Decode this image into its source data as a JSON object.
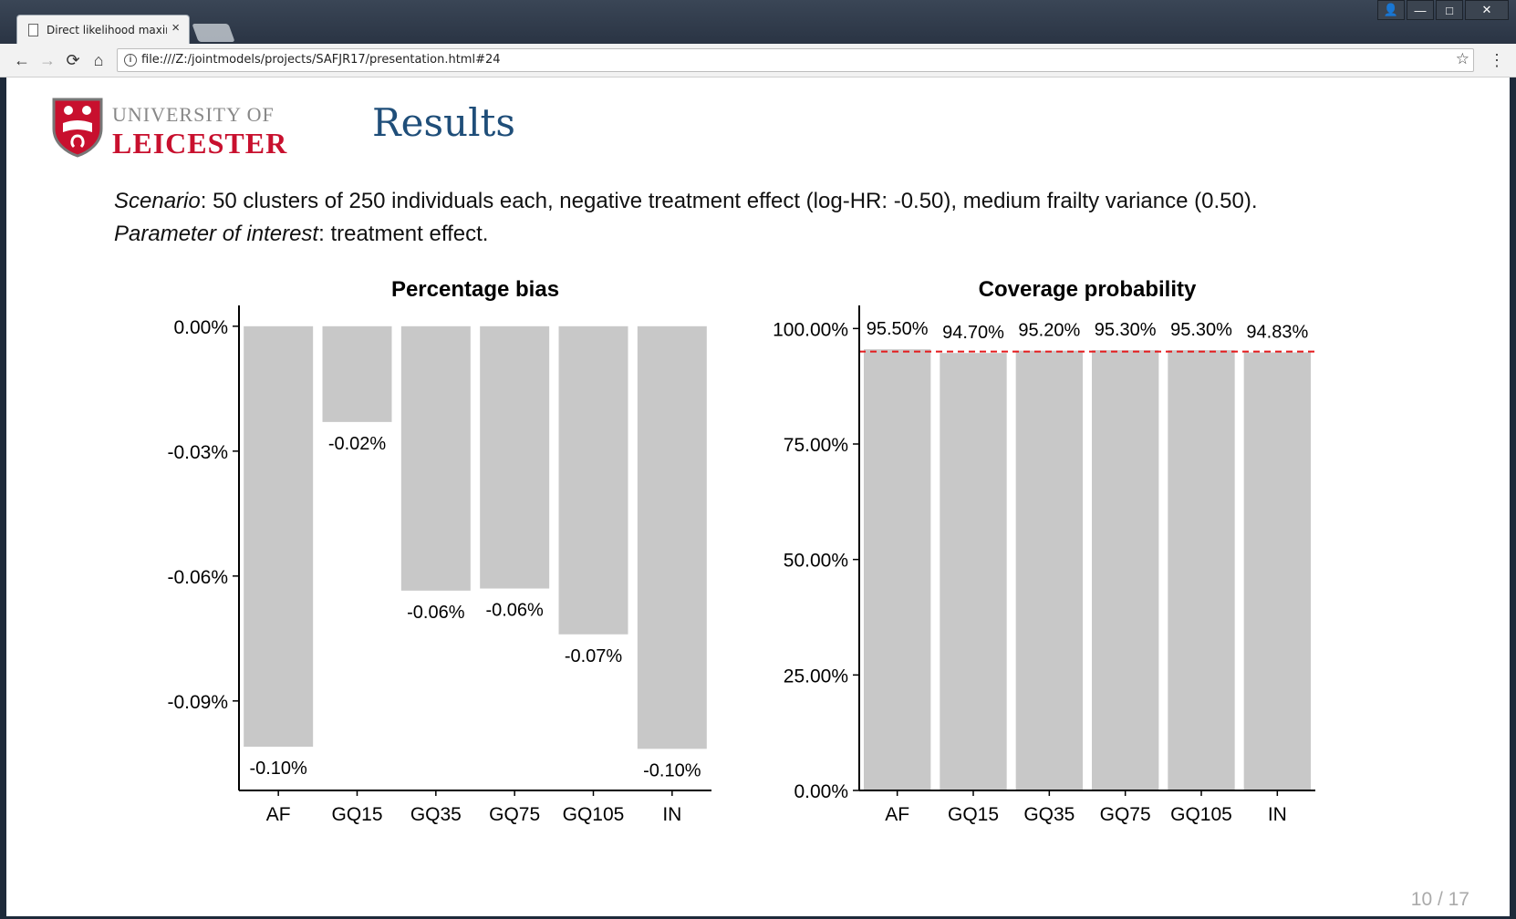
{
  "browser": {
    "tab_title": "Direct likelihood maximis",
    "tab_close": "×",
    "url": "file:///Z:/jointmodels/projects/SAFJR17/presentation.html#24",
    "nav": {
      "back": "←",
      "forward": "→",
      "reload": "⟳",
      "home": "⌂"
    },
    "window_buttons": {
      "user": "👤",
      "minimize": "—",
      "maximize": "□",
      "close": "✕"
    },
    "star": "☆",
    "menu": "⋮"
  },
  "slide": {
    "logo": {
      "line1": "UNIVERSITY OF",
      "line2": "LEICESTER"
    },
    "title": "Results",
    "scenario_label": "Scenario",
    "scenario_text": ": 50 clusters of 250 individuals each, negative treatment effect (log-HR: -0.50), medium frailty variance (0.50).",
    "parameter_label": "Parameter of interest",
    "parameter_text": ": treatment effect.",
    "page_number": "10 / 17"
  },
  "chart_data": [
    {
      "type": "bar",
      "title": "Percentage bias",
      "categories": [
        "AF",
        "GQ15",
        "GQ35",
        "GQ75",
        "GQ105",
        "IN"
      ],
      "values": [
        -0.101,
        -0.023,
        -0.0635,
        -0.063,
        -0.074,
        -0.1015
      ],
      "data_labels": [
        "-0.10%",
        "-0.02%",
        "-0.06%",
        "-0.06%",
        "-0.07%",
        "-0.10%"
      ],
      "ylim": [
        -0.1115,
        0.005
      ],
      "yticks": [
        0,
        -0.03,
        -0.06,
        -0.09
      ],
      "ytick_labels": [
        "0.00%",
        "-0.03%",
        "-0.06%",
        "-0.09%"
      ],
      "bar_color": "#c8c8c8",
      "grid": false
    },
    {
      "type": "bar",
      "title": "Coverage probability",
      "categories": [
        "AF",
        "GQ15",
        "GQ35",
        "GQ75",
        "GQ105",
        "IN"
      ],
      "values": [
        95.5,
        94.7,
        95.2,
        95.3,
        95.3,
        94.83
      ],
      "data_labels": [
        "95.50%",
        "94.70%",
        "95.20%",
        "95.30%",
        "95.30%",
        "94.83%"
      ],
      "ylim": [
        0,
        105
      ],
      "yticks": [
        0,
        25,
        50,
        75,
        100
      ],
      "ytick_labels": [
        "0.00%",
        "25.00%",
        "50.00%",
        "75.00%",
        "100.00%"
      ],
      "reference_line": 95,
      "reference_color": "#e41a1c",
      "bar_color": "#c8c8c8",
      "grid": false
    }
  ]
}
